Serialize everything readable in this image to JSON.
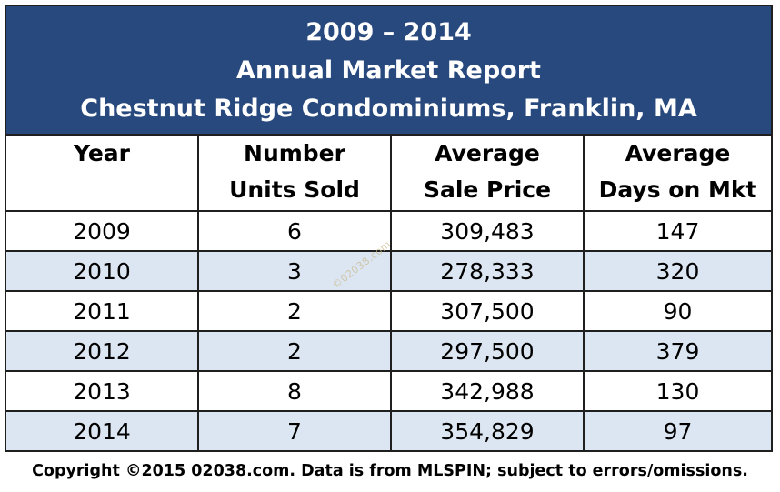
{
  "chart_data": {
    "type": "table",
    "title_lines": [
      "2009 – 2014",
      "Annual Market Report",
      "Chestnut Ridge Condominiums, Franklin, MA"
    ],
    "columns": [
      {
        "line1": "Year",
        "line2": ""
      },
      {
        "line1": "Number",
        "line2": "Units Sold"
      },
      {
        "line1": "Average",
        "line2": "Sale Price"
      },
      {
        "line1": "Average",
        "line2": "Days on Mkt"
      }
    ],
    "rows": [
      [
        "2009",
        "6",
        "309,483",
        "147"
      ],
      [
        "2010",
        "3",
        "278,333",
        "320"
      ],
      [
        "2011",
        "2",
        "307,500",
        "90"
      ],
      [
        "2012",
        "2",
        "297,500",
        "379"
      ],
      [
        "2013",
        "8",
        "342,988",
        "130"
      ],
      [
        "2014",
        "7",
        "354,829",
        "97"
      ]
    ],
    "watermark": "©02038.com",
    "footer": "Copyright ©2015 02038.com.  Data is from MLSPIN; subject to errors/omissions."
  },
  "colors": {
    "header_background": "#28497d",
    "header_text": "#ffffff",
    "stripe_row": "#dce6f2",
    "border": "#1f1f1f"
  }
}
